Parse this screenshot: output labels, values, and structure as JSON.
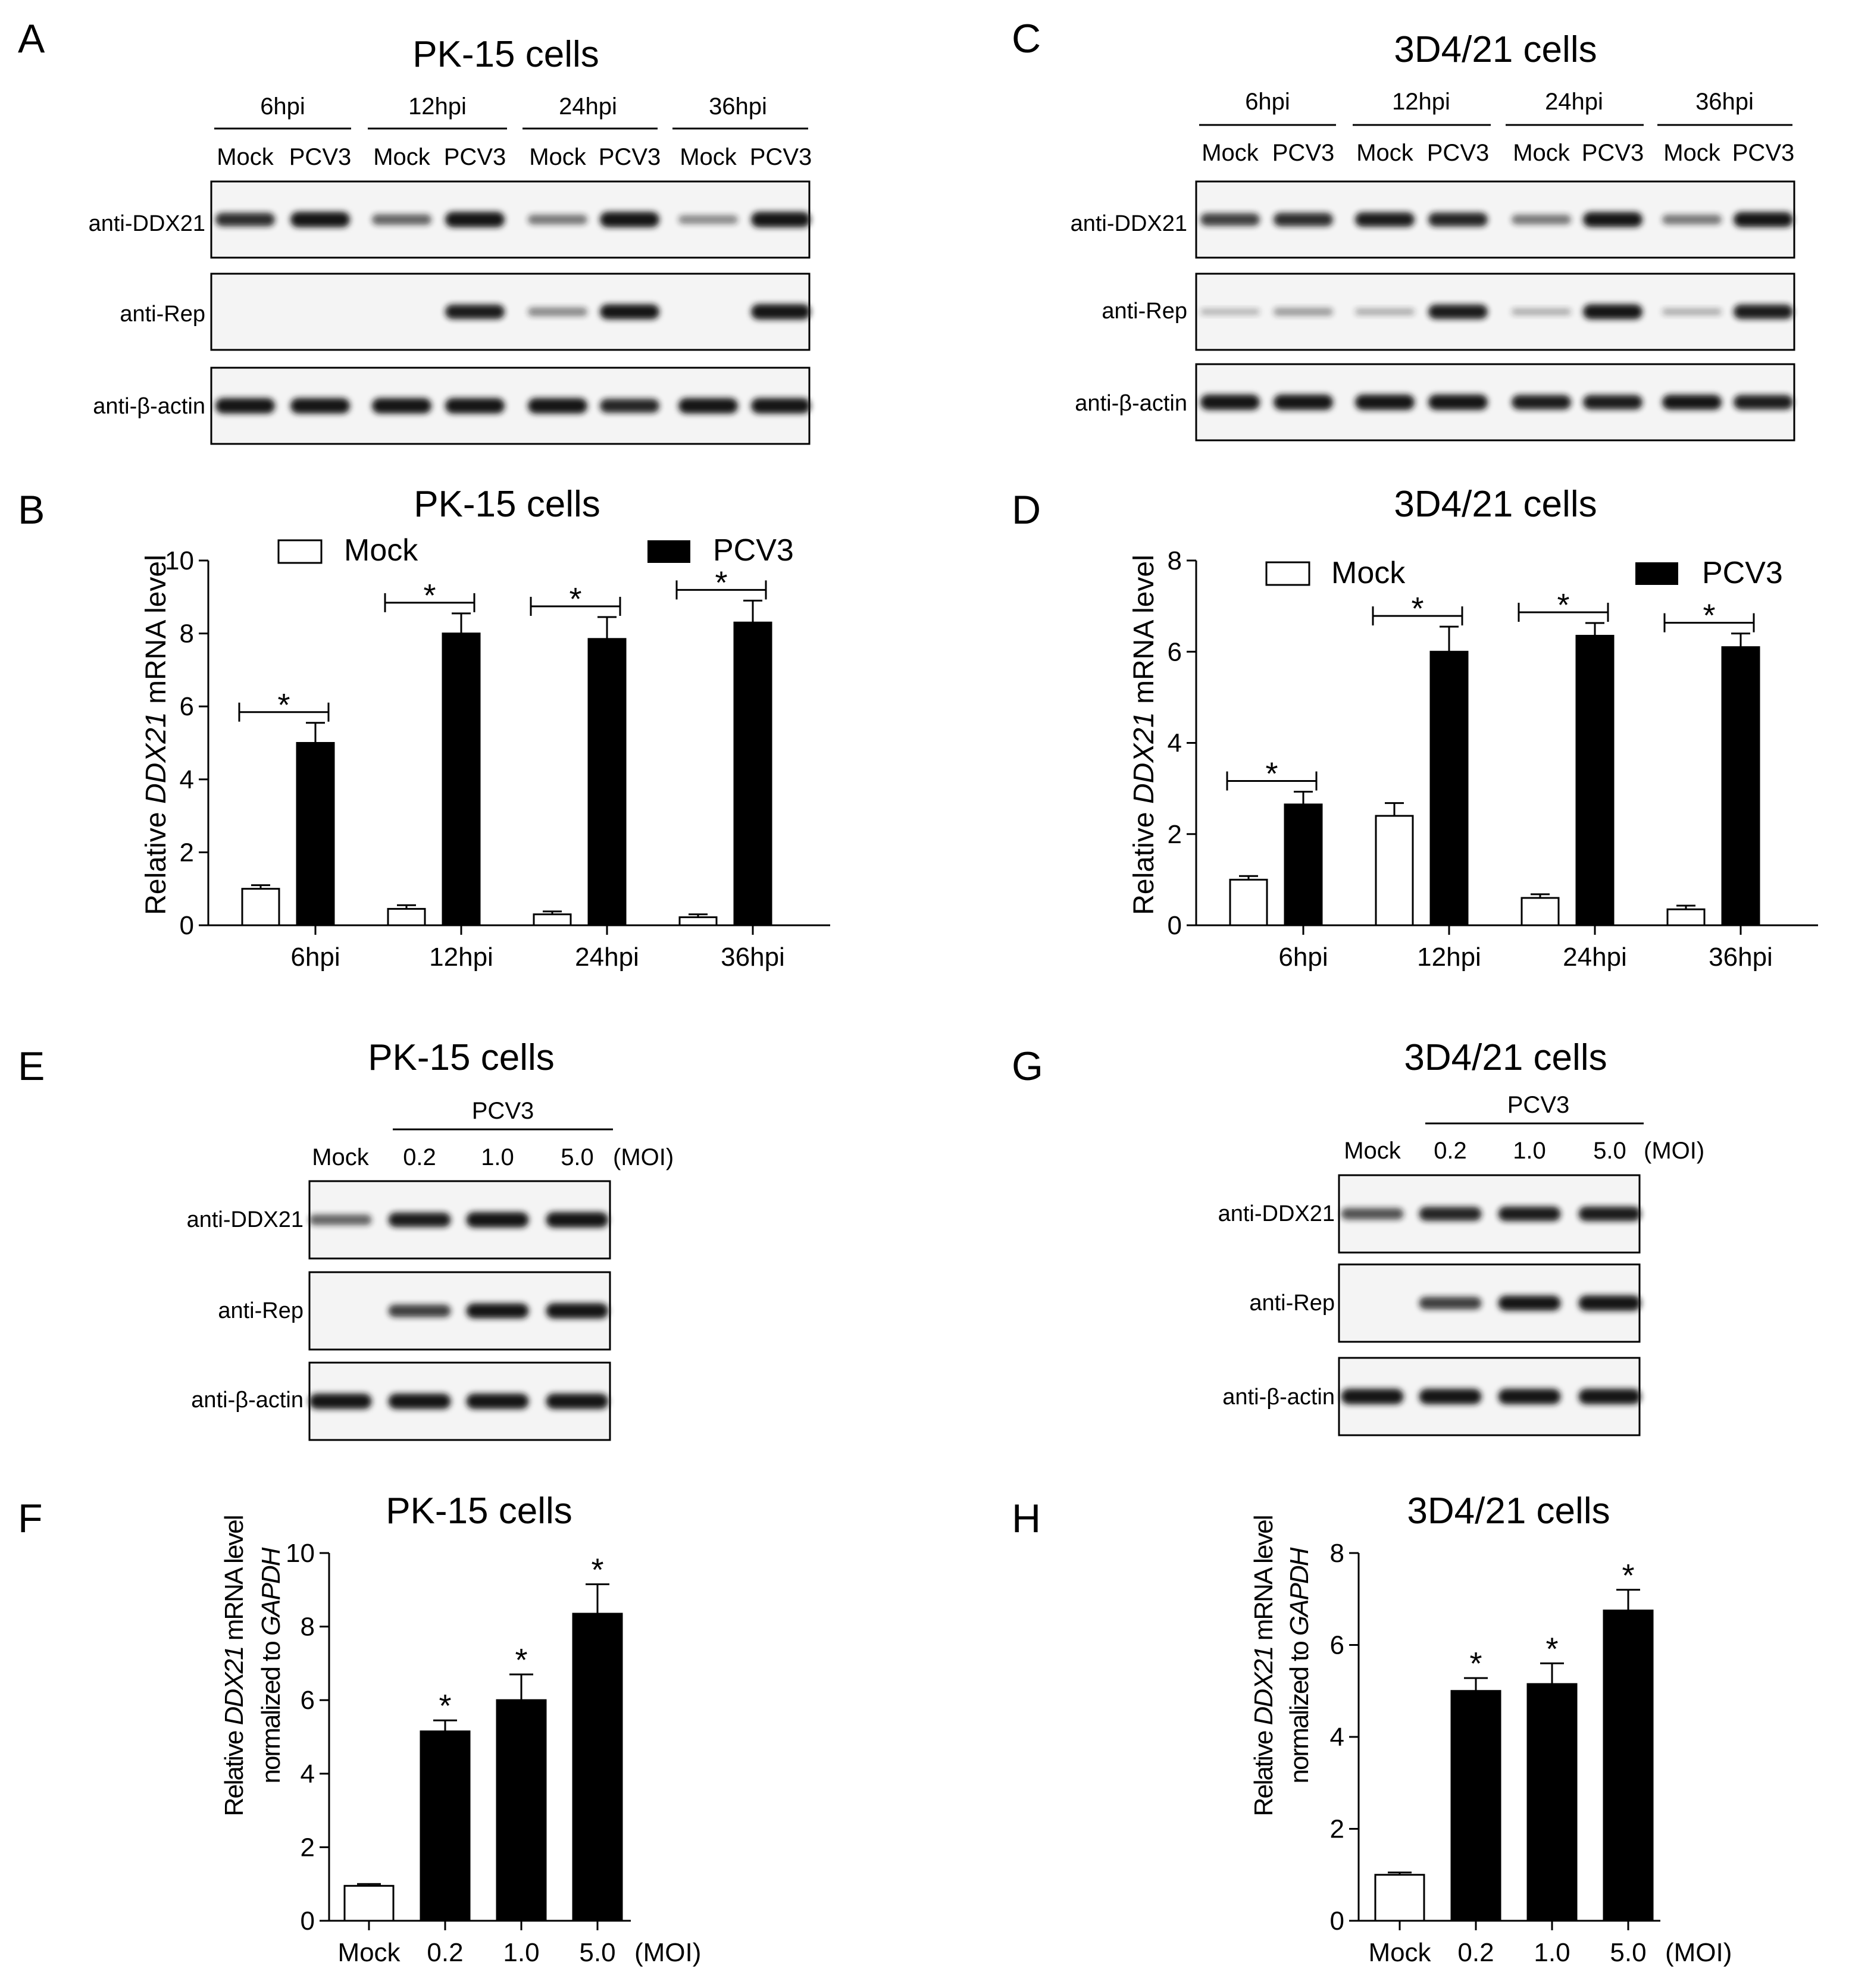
{
  "colors": {
    "mock_bar": "#ffffff",
    "pcv3_bar": "#000000",
    "ink": "#000000",
    "blot_bg": "#f4f4f4",
    "band": "#151515"
  },
  "panel_letters": [
    "A",
    "B",
    "C",
    "D",
    "E",
    "F",
    "G",
    "H"
  ],
  "common": {
    "mock": "Mock",
    "pcv3": "PCV3",
    "moi": "(MOI)",
    "anti_ddx21": "anti-DDX21",
    "anti_rep": "anti-Rep",
    "anti_actin": "anti-β-actin",
    "star": "*",
    "ylabel_prefix": "Relative ",
    "ylabel_gene": "DDX21",
    "ylabel_suffix": " mRNA level",
    "ylabel_norm_prefix": "normalized to ",
    "ylabel_norm_gene": "GAPDH"
  },
  "blot_A": {
    "title": "PK-15 cells",
    "timepoints": [
      "6hpi",
      "12hpi",
      "24hpi",
      "36hpi"
    ],
    "lanes": [
      "Mock",
      "PCV3",
      "Mock",
      "PCV3",
      "Mock",
      "PCV3",
      "Mock",
      "PCV3"
    ],
    "bands": {
      "ddx21": [
        0.8,
        1.0,
        0.5,
        1.0,
        0.4,
        1.0,
        0.3,
        1.0
      ],
      "rep": [
        0,
        0,
        0,
        0.9,
        0.3,
        0.95,
        0,
        1.0
      ],
      "actin": [
        1,
        1,
        1,
        1,
        1,
        0.85,
        1,
        1
      ]
    }
  },
  "blot_C": {
    "title": "3D4/21 cells",
    "timepoints": [
      "6hpi",
      "12hpi",
      "24hpi",
      "36hpi"
    ],
    "lanes": [
      "Mock",
      "PCV3",
      "Mock",
      "PCV3",
      "Mock",
      "PCV3",
      "Mock",
      "PCV3"
    ],
    "bands": {
      "ddx21": [
        0.7,
        0.8,
        0.9,
        0.85,
        0.4,
        0.95,
        0.4,
        0.95
      ],
      "rep": [
        0.05,
        0.2,
        0.1,
        0.9,
        0.1,
        0.95,
        0.1,
        0.9
      ],
      "actin": [
        1,
        1,
        1,
        1,
        0.9,
        0.9,
        0.95,
        0.9
      ]
    }
  },
  "blot_E": {
    "title": "PK-15 cells",
    "group": "PCV3",
    "lanes": [
      "Mock",
      "0.2",
      "1.0",
      "5.0"
    ],
    "bands": {
      "ddx21": [
        0.5,
        0.9,
        1.0,
        1.0
      ],
      "rep": [
        0,
        0.7,
        0.95,
        1.0
      ],
      "actin": [
        1,
        1,
        1,
        1
      ]
    }
  },
  "blot_G": {
    "title": "3D4/21 cells",
    "group": "PCV3",
    "lanes": [
      "Mock",
      "0.2",
      "1.0",
      "5.0"
    ],
    "bands": {
      "ddx21": [
        0.6,
        0.85,
        0.9,
        0.9
      ],
      "rep": [
        0,
        0.7,
        0.95,
        1.0
      ],
      "actin": [
        1,
        1,
        1,
        1
      ]
    }
  },
  "chart_data": [
    {
      "panel": "B",
      "type": "bar",
      "title": "PK-15 cells",
      "categories": [
        "6hpi",
        "12hpi",
        "24hpi",
        "36hpi"
      ],
      "ylim": [
        0,
        10
      ],
      "yticks": [
        "0",
        "2",
        "4",
        "6",
        "8",
        "10"
      ],
      "legend": "top",
      "series": [
        {
          "name": "Mock",
          "values": [
            1.0,
            0.45,
            0.3,
            0.22
          ],
          "errors": [
            0.1,
            0.1,
            0.08,
            0.08
          ]
        },
        {
          "name": "PCV3",
          "values": [
            5.0,
            8.0,
            7.85,
            8.3
          ],
          "errors": [
            0.55,
            0.55,
            0.6,
            0.6
          ]
        }
      ],
      "significance": [
        "*",
        "*",
        "*",
        "*"
      ]
    },
    {
      "panel": "D",
      "type": "bar",
      "title": "3D4/21 cells",
      "categories": [
        "6hpi",
        "12hpi",
        "24hpi",
        "36hpi"
      ],
      "ylim": [
        0,
        8
      ],
      "yticks": [
        "0",
        "2",
        "4",
        "6",
        "8"
      ],
      "legend": "top",
      "series": [
        {
          "name": "Mock",
          "values": [
            1.0,
            2.4,
            0.6,
            0.35
          ],
          "errors": [
            0.08,
            0.28,
            0.08,
            0.08
          ]
        },
        {
          "name": "PCV3",
          "values": [
            2.65,
            6.0,
            6.35,
            6.1
          ],
          "errors": [
            0.28,
            0.55,
            0.28,
            0.3
          ]
        }
      ],
      "significance": [
        "*",
        "*",
        "*",
        "*"
      ]
    },
    {
      "panel": "F",
      "type": "bar",
      "title": "PK-15 cells",
      "categories": [
        "Mock",
        "0.2",
        "1.0",
        "5.0"
      ],
      "unit_label": "(MOI)",
      "ylim": [
        0,
        10
      ],
      "yticks": [
        "0",
        "2",
        "4",
        "6",
        "8",
        "10"
      ],
      "values": [
        0.95,
        5.15,
        6.0,
        8.35
      ],
      "errors": [
        0.05,
        0.3,
        0.7,
        0.8
      ],
      "significance": [
        "",
        "*",
        "*",
        "*"
      ]
    },
    {
      "panel": "H",
      "type": "bar",
      "title": "3D4/21 cells",
      "categories": [
        "Mock",
        "0.2",
        "1.0",
        "5.0"
      ],
      "unit_label": "(MOI)",
      "ylim": [
        0,
        8
      ],
      "yticks": [
        "0",
        "2",
        "4",
        "6",
        "8"
      ],
      "values": [
        1.0,
        5.0,
        5.15,
        6.75
      ],
      "errors": [
        0.05,
        0.28,
        0.45,
        0.45
      ],
      "significance": [
        "",
        "*",
        "*",
        "*"
      ]
    }
  ]
}
